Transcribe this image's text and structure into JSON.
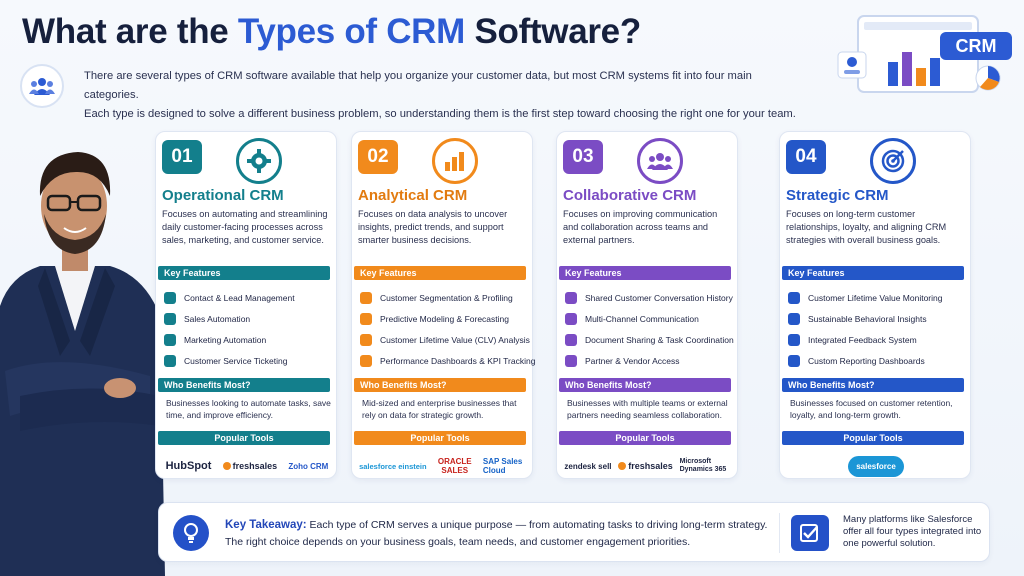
{
  "header": {
    "title_part1": "What are the ",
    "title_accent": "Types of CRM",
    "title_part2": " Software?"
  },
  "intro": {
    "line1": "There are several types of CRM software available that help you organize your customer data, but most CRM systems fit into four main categories.",
    "line2": "Each type is designed to solve a different business problem, so understanding them is the first step toward choosing the right one for your team."
  },
  "badge": {
    "label": "CRM"
  },
  "section_labels": {
    "features": "Key Features",
    "benefits": "Who Benefits Most?",
    "tools": "Popular Tools"
  },
  "cards": [
    {
      "number": "01",
      "name": "Operational CRM",
      "color": "#137f8c",
      "icon": "gear-icon",
      "description": "Focuses on automating and streamlining daily customer-facing processes across sales, marketing, and customer service.",
      "features": [
        "Contact & Lead Management",
        "Sales Automation",
        "Marketing Automation",
        "Customer Service Ticketing"
      ],
      "benefit": "Businesses looking to automate tasks, save time, and improve efficiency.",
      "tools": [
        "HubSpot",
        "freshsales",
        "Zoho CRM"
      ]
    },
    {
      "number": "02",
      "name": "Analytical CRM",
      "color": "#f18a1c",
      "icon": "bar-chart-icon",
      "description": "Focuses on data analysis to uncover insights, predict trends, and support smarter business decisions.",
      "features": [
        "Customer Segmentation & Profiling",
        "Predictive Modeling & Forecasting",
        "Customer Lifetime Value (CLV) Analysis",
        "Performance Dashboards & KPI Tracking"
      ],
      "benefit": "Mid-sized and enterprise businesses that rely on data for strategic growth.",
      "tools": [
        "salesforce einstein",
        "ORACLE SALES",
        "SAP Sales Cloud"
      ]
    },
    {
      "number": "03",
      "name": "Collaborative CRM",
      "color": "#7b4cc4",
      "icon": "team-icon",
      "description": "Focuses on improving communication and collaboration across teams and external partners.",
      "features": [
        "Shared Customer Conversation History",
        "Multi-Channel Communication",
        "Document Sharing & Task Coordination",
        "Partner & Vendor Access"
      ],
      "benefit": "Businesses with multiple teams or external partners needing seamless collaboration.",
      "tools": [
        "zendesk sell",
        "freshsales",
        "Microsoft Dynamics 365"
      ]
    },
    {
      "number": "04",
      "name": "Strategic CRM",
      "color": "#2457c8",
      "icon": "target-icon",
      "description": "Focuses on long-term customer relationships, loyalty, and aligning CRM strategies with overall business goals.",
      "features": [
        "Customer Lifetime Value Monitoring",
        "Sustainable Behavioral Insights",
        "Integrated Feedback System",
        "Custom Reporting Dashboards"
      ],
      "benefit": "Businesses focused on customer retention, loyalty, and long-term growth.",
      "tools": [
        "salesforce"
      ]
    }
  ],
  "takeaway": {
    "label": "Key Takeaway:",
    "text1": " Each type of CRM serves a unique purpose — from automating tasks to driving long-term strategy.",
    "text2": "The right choice depends on your business goals, team needs, and customer engagement priorities.",
    "note": "Many platforms like Salesforce offer all four types integrated into one powerful solution."
  }
}
